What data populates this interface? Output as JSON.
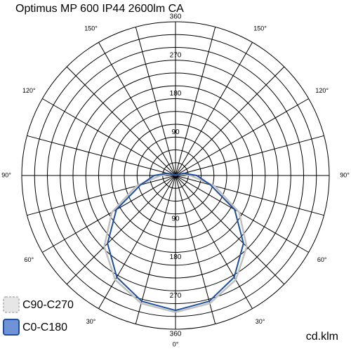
{
  "chart_data": {
    "type": "polar",
    "title": "Optimus MP 600 IP44 2600lm CA",
    "unit_label": "cd.klm",
    "rlim": [
      0,
      360
    ],
    "rticks": [
      90,
      180,
      270,
      360
    ],
    "r_grid": [
      30,
      60,
      90,
      120,
      150,
      180,
      210,
      240,
      270,
      300,
      330,
      360
    ],
    "angle_grid": [
      0,
      15,
      30,
      45,
      60,
      75,
      90,
      105,
      120,
      135,
      150,
      165,
      180
    ],
    "angle_ticks": [
      {
        "value": 0,
        "label": "0°"
      },
      {
        "value": 30,
        "label": "30°"
      },
      {
        "value": 60,
        "label": "60°"
      },
      {
        "value": 90,
        "label": "90°"
      },
      {
        "value": 120,
        "label": "120°"
      },
      {
        "value": 150,
        "label": "150°"
      }
    ],
    "angles": [
      0,
      15,
      30,
      45,
      60,
      75,
      90,
      105,
      120,
      135,
      150,
      165,
      180
    ],
    "series": [
      {
        "name": "C90-C270",
        "color": "#c0c0c0",
        "values": [
          320,
          310,
          282,
          236,
          172,
          95,
          35,
          15,
          4,
          0,
          0,
          0,
          0
        ]
      },
      {
        "name": "C0-C180",
        "color": "#1f4e9c",
        "values": [
          316,
          305,
          275,
          225,
          160,
          85,
          50,
          20,
          5,
          0,
          0,
          0,
          0
        ]
      }
    ]
  }
}
